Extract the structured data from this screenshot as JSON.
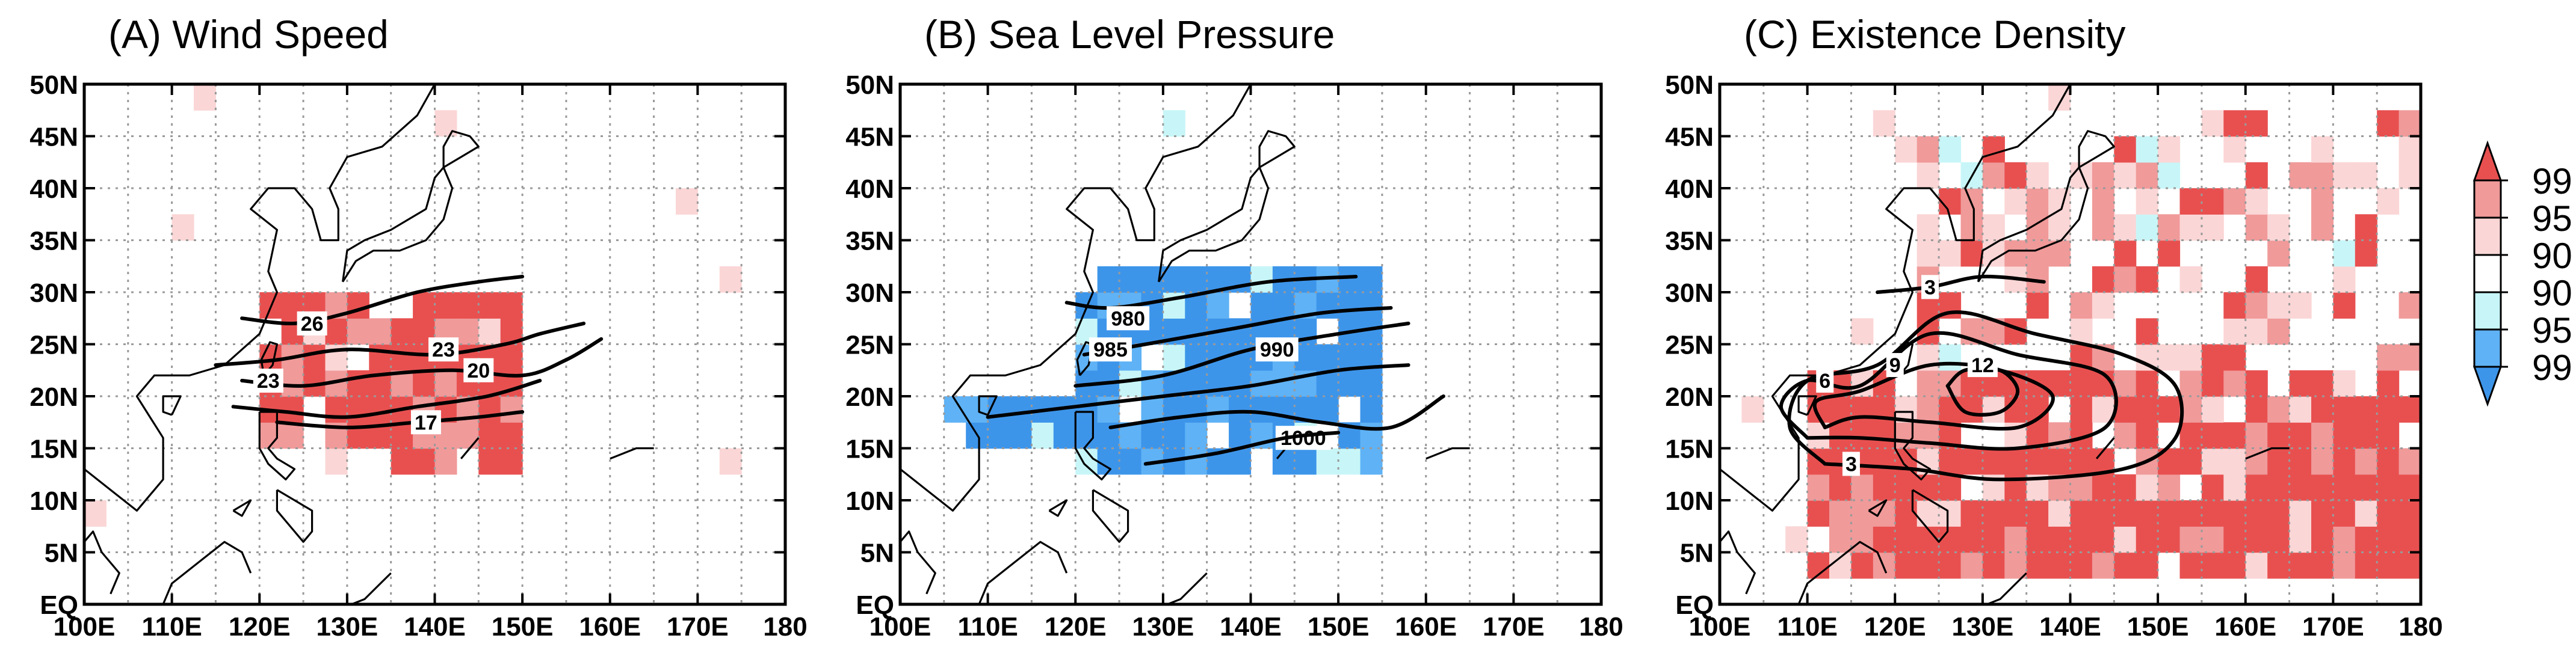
{
  "figure": {
    "colorbar": {
      "labels": [
        "99",
        "95",
        "90",
        "90",
        "95",
        "99"
      ],
      "colors": [
        "#e85050",
        "#f09a9a",
        "#fbd6d6",
        "#ffffff",
        "#c8f6f8",
        "#5fb2f5",
        "#3d95ea"
      ],
      "extend": "both"
    }
  },
  "chart_data": [
    {
      "type": "heatmap",
      "title": "(A) Wind Speed",
      "xlabel": "",
      "ylabel": "",
      "xticks": [
        "100E",
        "110E",
        "120E",
        "130E",
        "140E",
        "150E",
        "160E",
        "170E",
        "180"
      ],
      "yticks": [
        "EQ",
        "5N",
        "10N",
        "15N",
        "20N",
        "25N",
        "30N",
        "35N",
        "40N",
        "45N",
        "50N"
      ],
      "xlim": [
        100,
        180
      ],
      "ylim": [
        0,
        50
      ],
      "grid": true,
      "shading": "positive",
      "region": [
        {
          "lon": [
            120,
            150
          ],
          "lat": [
            14,
            31
          ]
        },
        {
          "lon": [
            136,
            150
          ],
          "lat": [
            12,
            15
          ]
        }
      ],
      "contours": [
        {
          "label": "26",
          "points": [
            [
              118,
              27.5
            ],
            [
              124,
              27
            ],
            [
              130,
              28
            ],
            [
              138,
              30
            ],
            [
              145,
              31
            ],
            [
              150,
              31.5
            ]
          ],
          "label_at": [
            126,
            27
          ]
        },
        {
          "label": "23",
          "points": [
            [
              115,
              23
            ],
            [
              122,
              23.5
            ],
            [
              130,
              24.5
            ],
            [
              140,
              24
            ],
            [
              148,
              25
            ],
            [
              152,
              26
            ],
            [
              157,
              27
            ]
          ],
          "label_at": [
            141,
            24.5
          ]
        },
        {
          "label": "20",
          "points": [
            [
              118,
              21.5
            ],
            [
              125,
              21
            ],
            [
              133,
              22
            ],
            [
              142,
              22.5
            ],
            [
              150,
              22
            ],
            [
              155,
              23.5
            ],
            [
              159,
              25.5
            ]
          ],
          "label_at": [
            145,
            22.5
          ]
        },
        {
          "label": "23",
          "points": [
            [
              117,
              19
            ],
            [
              123,
              18.5
            ],
            [
              130,
              18
            ],
            [
              138,
              19
            ],
            [
              146,
              20
            ],
            [
              152,
              21.5
            ]
          ],
          "label_at": [
            121,
            21.5
          ]
        },
        {
          "label": "17",
          "points": [
            [
              122,
              17.5
            ],
            [
              130,
              17
            ],
            [
              138,
              17.5
            ],
            [
              145,
              18
            ],
            [
              150,
              18.5
            ]
          ],
          "label_at": [
            139,
            17.5
          ]
        }
      ]
    },
    {
      "type": "heatmap",
      "title": "(B) Sea Level Pressure",
      "xlabel": "",
      "ylabel": "",
      "xticks": [
        "100E",
        "110E",
        "120E",
        "130E",
        "140E",
        "150E",
        "160E",
        "170E",
        "180"
      ],
      "yticks": [
        "EQ",
        "5N",
        "10N",
        "15N",
        "20N",
        "25N",
        "30N",
        "35N",
        "40N",
        "45N",
        "50N"
      ],
      "xlim": [
        100,
        180
      ],
      "ylim": [
        0,
        50
      ],
      "grid": true,
      "shading": "negative",
      "region": [
        {
          "lon": [
            120,
            156
          ],
          "lat": [
            13,
            32
          ]
        },
        {
          "lon": [
            106,
            120
          ],
          "lat": [
            16,
            20
          ]
        }
      ],
      "contours": [
        {
          "label": "980",
          "points": [
            [
              119,
              29
            ],
            [
              124,
              28.5
            ],
            [
              132,
              29.5
            ],
            [
              142,
              31
            ],
            [
              152,
              31.5
            ]
          ],
          "label_at": [
            126,
            27.5
          ]
        },
        {
          "label": "985",
          "points": [
            [
              121,
              24
            ],
            [
              128,
              25
            ],
            [
              138,
              26.5
            ],
            [
              148,
              28
            ],
            [
              156,
              28.5
            ]
          ],
          "label_at": [
            124,
            24.5
          ]
        },
        {
          "label": "990",
          "points": [
            [
              120,
              21
            ],
            [
              130,
              22
            ],
            [
              140,
              24.5
            ],
            [
              150,
              26
            ],
            [
              158,
              27
            ]
          ],
          "label_at": [
            143,
            24.5
          ]
        },
        {
          "label": "",
          "points": [
            [
              110,
              18
            ],
            [
              120,
              19
            ],
            [
              130,
              20
            ],
            [
              140,
              21
            ],
            [
              150,
              22.5
            ],
            [
              158,
              23
            ]
          ],
          "label_at": null
        },
        {
          "label": "1000",
          "points": [
            [
              124,
              17
            ],
            [
              132,
              18
            ],
            [
              140,
              18.5
            ],
            [
              148,
              17.5
            ],
            [
              156,
              17
            ],
            [
              162,
              20
            ]
          ],
          "label_at": [
            146,
            16
          ]
        },
        {
          "label": "",
          "points": [
            [
              128,
              13.5
            ],
            [
              136,
              14.5
            ],
            [
              144,
              16
            ],
            [
              150,
              16.5
            ]
          ],
          "label_at": null
        }
      ]
    },
    {
      "type": "heatmap",
      "title": "(C) Existence Density",
      "xlabel": "",
      "ylabel": "",
      "xticks": [
        "100E",
        "110E",
        "120E",
        "130E",
        "140E",
        "150E",
        "160E",
        "170E",
        "180"
      ],
      "yticks": [
        "EQ",
        "5N",
        "10N",
        "15N",
        "20N",
        "25N",
        "30N",
        "35N",
        "40N",
        "45N",
        "50N"
      ],
      "xlim": [
        100,
        180
      ],
      "ylim": [
        0,
        50
      ],
      "grid": true,
      "shading": "mixed",
      "region": [
        {
          "lon": [
            110,
            180
          ],
          "lat": [
            2,
            22
          ]
        },
        {
          "lon": [
            150,
            180
          ],
          "lat": [
            22,
            48
          ]
        },
        {
          "lon": [
            120,
            150
          ],
          "lat": [
            22,
            45
          ]
        }
      ],
      "contours": [
        {
          "label": "3",
          "points": [
            [
              112,
              13.5
            ],
            [
              108,
              17
            ],
            [
              110,
              21.5
            ],
            [
              118,
              23
            ],
            [
              126,
              28
            ],
            [
              136,
              26
            ],
            [
              146,
              24
            ],
            [
              152,
              21
            ],
            [
              152,
              16
            ],
            [
              146,
              13
            ],
            [
              132,
              12
            ],
            [
              122,
              13
            ],
            [
              112,
              13.5
            ]
          ],
          "label_at": [
            115,
            13.5
          ]
        },
        {
          "label": "3",
          "points": [
            [
              118,
              30
            ],
            [
              124,
              30.5
            ],
            [
              130,
              31.5
            ],
            [
              137,
              31
            ]
          ],
          "label_at": [
            124,
            30.5
          ]
        },
        {
          "label": "6",
          "points": [
            [
              110,
              16
            ],
            [
              107,
              19
            ],
            [
              110,
              21.5
            ],
            [
              116,
              21
            ],
            [
              124,
              26
            ],
            [
              134,
              24
            ],
            [
              144,
              22
            ],
            [
              144,
              17
            ],
            [
              134,
              15
            ],
            [
              124,
              15.5
            ],
            [
              116,
              16
            ],
            [
              110,
              16
            ]
          ],
          "label_at": [
            112,
            21.5
          ]
        },
        {
          "label": "9",
          "points": [
            [
              112,
              17
            ],
            [
              111,
              19.5
            ],
            [
              116,
              20.5
            ],
            [
              124,
              23
            ],
            [
              132,
              22.5
            ],
            [
              138,
              20
            ],
            [
              134,
              17
            ],
            [
              124,
              17.5
            ],
            [
              116,
              18
            ],
            [
              112,
              17
            ]
          ],
          "label_at": [
            120,
            23
          ]
        },
        {
          "label": "12",
          "points": [
            [
              126,
              21
            ],
            [
              128,
              22.5
            ],
            [
              132,
              22.5
            ],
            [
              134,
              20.5
            ],
            [
              132,
              18.5
            ],
            [
              128,
              18.5
            ],
            [
              126,
              21
            ]
          ],
          "label_at": [
            130,
            23
          ]
        }
      ]
    }
  ]
}
